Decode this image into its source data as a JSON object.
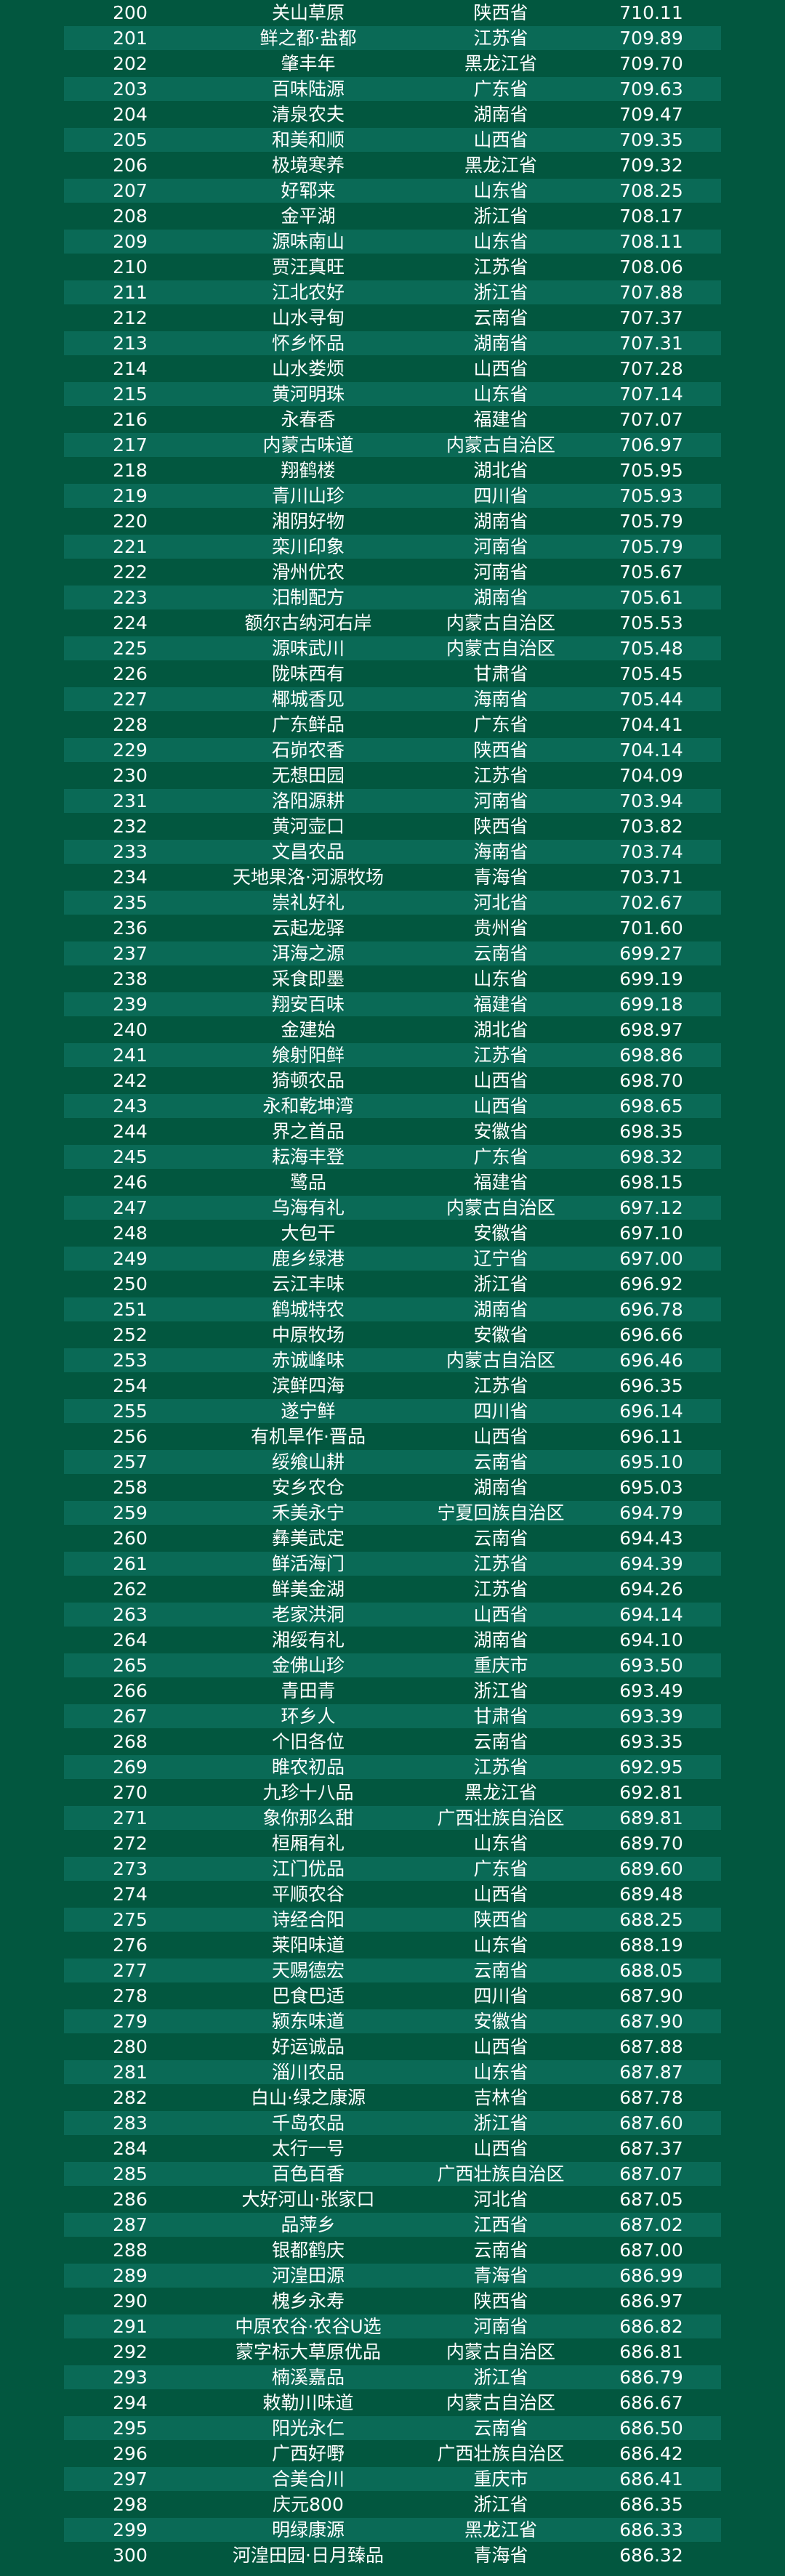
{
  "colors": {
    "background": "#02573f",
    "row_alt": "#0a6a56",
    "text": "#ffffff"
  },
  "rows": [
    [
      "200",
      "关山草原",
      "陕西省",
      "710.11"
    ],
    [
      "201",
      "鲜之都·盐都",
      "江苏省",
      "709.89"
    ],
    [
      "202",
      "肇丰年",
      "黑龙江省",
      "709.70"
    ],
    [
      "203",
      "百味陆源",
      "广东省",
      "709.63"
    ],
    [
      "204",
      "清泉农夫",
      "湖南省",
      "709.47"
    ],
    [
      "205",
      "和美和顺",
      "山西省",
      "709.35"
    ],
    [
      "206",
      "极境寒养",
      "黑龙江省",
      "709.32"
    ],
    [
      "207",
      "好郓来",
      "山东省",
      "708.25"
    ],
    [
      "208",
      "金平湖",
      "浙江省",
      "708.17"
    ],
    [
      "209",
      "源味南山",
      "山东省",
      "708.11"
    ],
    [
      "210",
      "贾汪真旺",
      "江苏省",
      "708.06"
    ],
    [
      "211",
      "江北农好",
      "浙江省",
      "707.88"
    ],
    [
      "212",
      "山水寻甸",
      "云南省",
      "707.37"
    ],
    [
      "213",
      "怀乡怀品",
      "湖南省",
      "707.31"
    ],
    [
      "214",
      "山水娄烦",
      "山西省",
      "707.28"
    ],
    [
      "215",
      "黄河明珠",
      "山东省",
      "707.14"
    ],
    [
      "216",
      "永春香",
      "福建省",
      "707.07"
    ],
    [
      "217",
      "内蒙古味道",
      "内蒙古自治区",
      "706.97"
    ],
    [
      "218",
      "翔鹤楼",
      "湖北省",
      "705.95"
    ],
    [
      "219",
      "青川山珍",
      "四川省",
      "705.93"
    ],
    [
      "220",
      "湘阴好物",
      "湖南省",
      "705.79"
    ],
    [
      "221",
      "栾川印象",
      "河南省",
      "705.79"
    ],
    [
      "222",
      "滑州优农",
      "河南省",
      "705.67"
    ],
    [
      "223",
      "汨制配方",
      "湖南省",
      "705.61"
    ],
    [
      "224",
      "额尔古纳河右岸",
      "内蒙古自治区",
      "705.53"
    ],
    [
      "225",
      "源味武川",
      "内蒙古自治区",
      "705.48"
    ],
    [
      "226",
      "陇味西有",
      "甘肃省",
      "705.45"
    ],
    [
      "227",
      "椰城香见",
      "海南省",
      "705.44"
    ],
    [
      "228",
      "广东鲜品",
      "广东省",
      "704.41"
    ],
    [
      "229",
      "石峁农香",
      "陕西省",
      "704.14"
    ],
    [
      "230",
      "无想田园",
      "江苏省",
      "704.09"
    ],
    [
      "231",
      "洛阳源耕",
      "河南省",
      "703.94"
    ],
    [
      "232",
      "黄河壶口",
      "陕西省",
      "703.82"
    ],
    [
      "233",
      "文昌农品",
      "海南省",
      "703.74"
    ],
    [
      "234",
      "天地果洛·河源牧场",
      "青海省",
      "703.71"
    ],
    [
      "235",
      "崇礼好礼",
      "河北省",
      "702.67"
    ],
    [
      "236",
      "云起龙驿",
      "贵州省",
      "701.60"
    ],
    [
      "237",
      "洱海之源",
      "云南省",
      "699.27"
    ],
    [
      "238",
      "采食即墨",
      "山东省",
      "699.19"
    ],
    [
      "239",
      "翔安百味",
      "福建省",
      "699.18"
    ],
    [
      "240",
      "金建始",
      "湖北省",
      "698.97"
    ],
    [
      "241",
      "飨射阳鲜",
      "江苏省",
      "698.86"
    ],
    [
      "242",
      "猗顿农品",
      "山西省",
      "698.70"
    ],
    [
      "243",
      "永和乾坤湾",
      "山西省",
      "698.65"
    ],
    [
      "244",
      "界之首品",
      "安徽省",
      "698.35"
    ],
    [
      "245",
      "耘海丰登",
      "广东省",
      "698.32"
    ],
    [
      "246",
      "鹭品",
      "福建省",
      "698.15"
    ],
    [
      "247",
      "乌海有礼",
      "内蒙古自治区",
      "697.12"
    ],
    [
      "248",
      "大包干",
      "安徽省",
      "697.10"
    ],
    [
      "249",
      "鹿乡绿港",
      "辽宁省",
      "697.00"
    ],
    [
      "250",
      "云江丰味",
      "浙江省",
      "696.92"
    ],
    [
      "251",
      "鹤城特农",
      "湖南省",
      "696.78"
    ],
    [
      "252",
      "中原牧场",
      "安徽省",
      "696.66"
    ],
    [
      "253",
      "赤诚峰味",
      "内蒙古自治区",
      "696.46"
    ],
    [
      "254",
      "滨鲜四海",
      "江苏省",
      "696.35"
    ],
    [
      "255",
      "遂宁鲜",
      "四川省",
      "696.14"
    ],
    [
      "256",
      "有机旱作·晋品",
      "山西省",
      "696.11"
    ],
    [
      "257",
      "绥飨山耕",
      "云南省",
      "695.10"
    ],
    [
      "258",
      "安乡农仓",
      "湖南省",
      "695.03"
    ],
    [
      "259",
      "禾美永宁",
      "宁夏回族自治区",
      "694.79"
    ],
    [
      "260",
      "彝美武定",
      "云南省",
      "694.43"
    ],
    [
      "261",
      "鲜活海门",
      "江苏省",
      "694.39"
    ],
    [
      "262",
      "鲜美金湖",
      "江苏省",
      "694.26"
    ],
    [
      "263",
      "老家洪洞",
      "山西省",
      "694.14"
    ],
    [
      "264",
      "湘绥有礼",
      "湖南省",
      "694.10"
    ],
    [
      "265",
      "金佛山珍",
      "重庆市",
      "693.50"
    ],
    [
      "266",
      "青田青",
      "浙江省",
      "693.49"
    ],
    [
      "267",
      "环乡人",
      "甘肃省",
      "693.39"
    ],
    [
      "268",
      "个旧各位",
      "云南省",
      "693.35"
    ],
    [
      "269",
      "睢农初品",
      "江苏省",
      "692.95"
    ],
    [
      "270",
      "九珍十八品",
      "黑龙江省",
      "692.81"
    ],
    [
      "271",
      "象你那么甜",
      "广西壮族自治区",
      "689.81"
    ],
    [
      "272",
      "桓厢有礼",
      "山东省",
      "689.70"
    ],
    [
      "273",
      "江门优品",
      "广东省",
      "689.60"
    ],
    [
      "274",
      "平顺农谷",
      "山西省",
      "689.48"
    ],
    [
      "275",
      "诗经合阳",
      "陕西省",
      "688.25"
    ],
    [
      "276",
      "莱阳味道",
      "山东省",
      "688.19"
    ],
    [
      "277",
      "天赐德宏",
      "云南省",
      "688.05"
    ],
    [
      "278",
      "巴食巴适",
      "四川省",
      "687.90"
    ],
    [
      "279",
      "颍东味道",
      "安徽省",
      "687.90"
    ],
    [
      "280",
      "好运诚品",
      "山西省",
      "687.88"
    ],
    [
      "281",
      "淄川农品",
      "山东省",
      "687.87"
    ],
    [
      "282",
      "白山·绿之康源",
      "吉林省",
      "687.78"
    ],
    [
      "283",
      "千岛农品",
      "浙江省",
      "687.60"
    ],
    [
      "284",
      "太行一号",
      "山西省",
      "687.37"
    ],
    [
      "285",
      "百色百香",
      "广西壮族自治区",
      "687.07"
    ],
    [
      "286",
      "大好河山·张家口",
      "河北省",
      "687.05"
    ],
    [
      "287",
      "品萍乡",
      "江西省",
      "687.02"
    ],
    [
      "288",
      "银都鹤庆",
      "云南省",
      "687.00"
    ],
    [
      "289",
      "河湟田源",
      "青海省",
      "686.99"
    ],
    [
      "290",
      "槐乡永寿",
      "陕西省",
      "686.97"
    ],
    [
      "291",
      "中原农谷·农谷U选",
      "河南省",
      "686.82"
    ],
    [
      "292",
      "蒙字标大草原优品",
      "内蒙古自治区",
      "686.81"
    ],
    [
      "293",
      "楠溪嘉品",
      "浙江省",
      "686.79"
    ],
    [
      "294",
      "敕勒川味道",
      "内蒙古自治区",
      "686.67"
    ],
    [
      "295",
      "阳光永仁",
      "云南省",
      "686.50"
    ],
    [
      "296",
      "广西好嘢",
      "广西壮族自治区",
      "686.42"
    ],
    [
      "297",
      "合美合川",
      "重庆市",
      "686.41"
    ],
    [
      "298",
      "庆元800",
      "浙江省",
      "686.35"
    ],
    [
      "299",
      "明绿康源",
      "黑龙江省",
      "686.33"
    ],
    [
      "300",
      "河湟田园·日月臻品",
      "青海省",
      "686.32"
    ]
  ]
}
